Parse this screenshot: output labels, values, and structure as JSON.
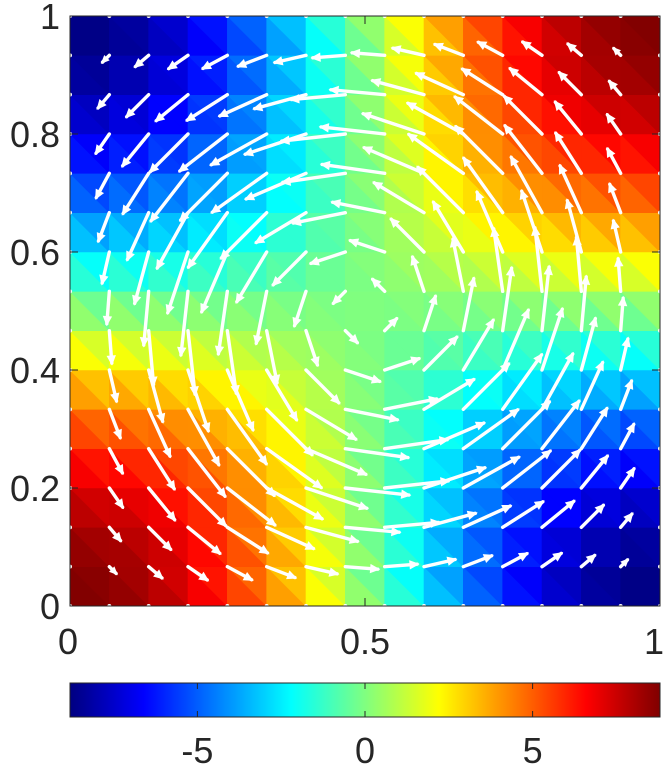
{
  "chart_data": {
    "type": "heatmap",
    "title": "",
    "xlabel": "",
    "ylabel": "",
    "xlim": [
      0,
      1
    ],
    "ylim": [
      0,
      1
    ],
    "x_ticks": [
      {
        "value": 0,
        "label": "0"
      },
      {
        "value": 0.5,
        "label": "0.5"
      },
      {
        "value": 1,
        "label": "1"
      }
    ],
    "y_ticks": [
      {
        "value": 0,
        "label": "0"
      },
      {
        "value": 0.2,
        "label": "0.2"
      },
      {
        "value": 0.4,
        "label": "0.4"
      },
      {
        "value": 0.6,
        "label": "0.6"
      },
      {
        "value": 0.8,
        "label": "0.8"
      },
      {
        "value": 1,
        "label": "1"
      }
    ],
    "field": {
      "grid_points": 16,
      "scalar": "8.8 * cos(pi*x) * cos(pi*y)",
      "vector": "u = sin(pi*x)*sin(pi*y)*(0.5 - y), v = sin(pi*x)*sin(pi*y)*(x - 0.5)",
      "colormap": "jet",
      "arrow_color": "#ffffff"
    },
    "colorbar": {
      "orientation": "horizontal",
      "location": "bottom",
      "range": [
        -8.8,
        8.8
      ],
      "ticks": [
        {
          "value": -5,
          "label": "-5"
        },
        {
          "value": 0,
          "label": "0"
        },
        {
          "value": 5,
          "label": "5"
        }
      ]
    },
    "grid": false,
    "legend": "none"
  }
}
